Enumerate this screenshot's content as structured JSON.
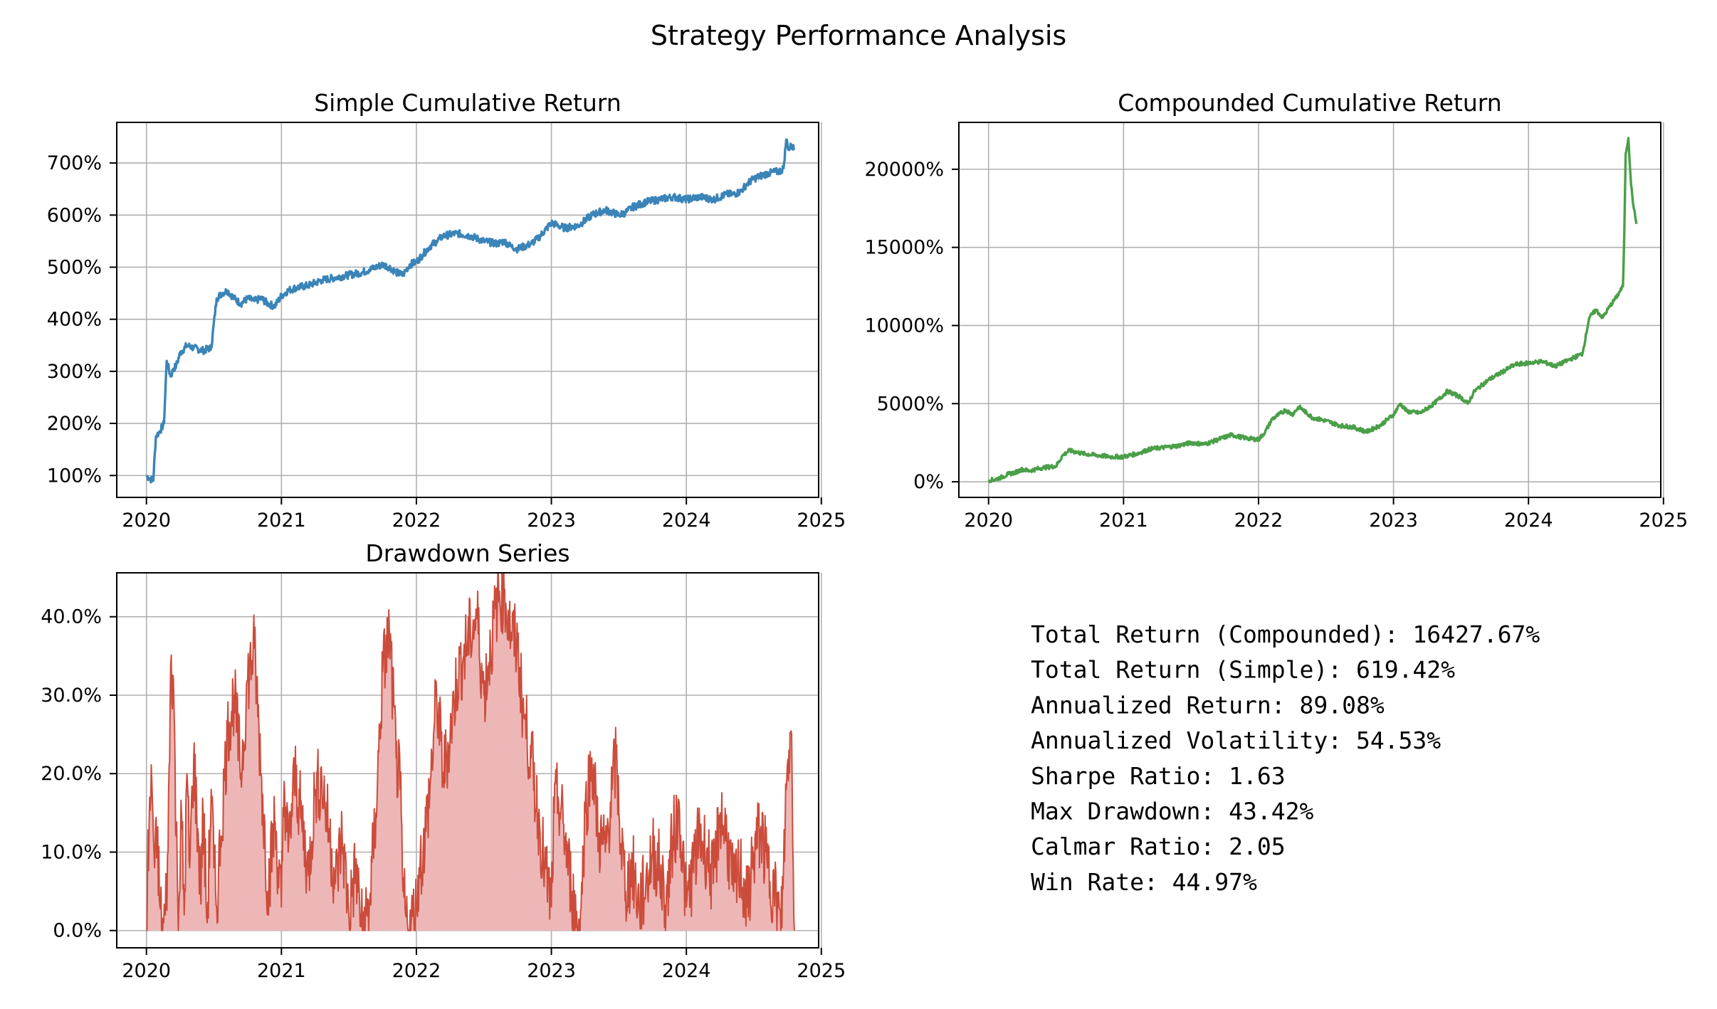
{
  "figure": {
    "title": "Strategy Performance Analysis"
  },
  "chart_data": [
    {
      "id": "simple",
      "type": "line",
      "title": "Simple Cumulative Return",
      "xlabel": "",
      "ylabel": "",
      "x_unit": "year",
      "xlim": [
        2019.78,
        2024.98
      ],
      "ylim": [
        58,
        778
      ],
      "xticks": [
        2020,
        2021,
        2022,
        2023,
        2024,
        2025
      ],
      "xtick_labels": [
        "2020",
        "2021",
        "2022",
        "2023",
        "2024",
        "2025"
      ],
      "yticks": [
        100,
        200,
        300,
        400,
        500,
        600,
        700
      ],
      "ytick_labels": [
        "100%",
        "200%",
        "300%",
        "400%",
        "500%",
        "600%",
        "700%"
      ],
      "grid": true,
      "color": "#3a84b8",
      "noise": 7,
      "series": [
        {
          "x": [
            2020.0,
            2020.02,
            2020.05,
            2020.07,
            2020.1,
            2020.13,
            2020.15,
            2020.18,
            2020.2,
            2020.22,
            2020.25,
            2020.3,
            2020.35,
            2020.42,
            2020.48,
            2020.52,
            2020.56,
            2020.6,
            2020.65,
            2020.7,
            2020.75,
            2020.8,
            2020.85,
            2020.9,
            2020.95,
            2021.0,
            2021.05,
            2021.1,
            2021.2,
            2021.3,
            2021.4,
            2021.5,
            2021.6,
            2021.65,
            2021.7,
            2021.75,
            2021.8,
            2021.85,
            2021.9,
            2021.95,
            2022.0,
            2022.05,
            2022.1,
            2022.15,
            2022.2,
            2022.3,
            2022.4,
            2022.5,
            2022.6,
            2022.65,
            2022.7,
            2022.75,
            2022.8,
            2022.85,
            2022.9,
            2023.0,
            2023.05,
            2023.1,
            2023.2,
            2023.3,
            2023.4,
            2023.5,
            2023.55,
            2023.6,
            2023.7,
            2023.8,
            2023.9,
            2024.0,
            2024.1,
            2024.2,
            2024.3,
            2024.35,
            2024.4,
            2024.45,
            2024.5,
            2024.6,
            2024.7,
            2024.72,
            2024.74,
            2024.76,
            2024.78,
            2024.8
          ],
          "y": [
            100,
            95,
            90,
            175,
            185,
            200,
            320,
            290,
            305,
            310,
            335,
            350,
            345,
            340,
            345,
            440,
            450,
            455,
            440,
            430,
            440,
            435,
            440,
            430,
            425,
            445,
            455,
            460,
            465,
            475,
            480,
            485,
            490,
            495,
            500,
            505,
            500,
            490,
            485,
            505,
            510,
            525,
            540,
            550,
            560,
            565,
            560,
            550,
            545,
            550,
            540,
            535,
            540,
            545,
            555,
            585,
            580,
            575,
            580,
            600,
            610,
            600,
            605,
            615,
            625,
            630,
            635,
            630,
            635,
            630,
            640,
            640,
            645,
            660,
            670,
            680,
            685,
            690,
            745,
            725,
            735,
            725
          ]
        }
      ]
    },
    {
      "id": "compounded",
      "type": "line",
      "title": "Compounded Cumulative Return",
      "xlabel": "",
      "ylabel": "",
      "x_unit": "year",
      "xlim": [
        2019.78,
        2024.98
      ],
      "ylim": [
        -1000,
        23000
      ],
      "xticks": [
        2020,
        2021,
        2022,
        2023,
        2024,
        2025
      ],
      "xtick_labels": [
        "2020",
        "2021",
        "2022",
        "2023",
        "2024",
        "2025"
      ],
      "yticks": [
        0,
        5000,
        10000,
        15000,
        20000
      ],
      "ytick_labels": [
        "0%",
        "5000%",
        "10000%",
        "15000%",
        "20000%"
      ],
      "grid": true,
      "color": "#4a9f48",
      "noise": 130,
      "series": [
        {
          "x": [
            2020.0,
            2020.05,
            2020.1,
            2020.15,
            2020.2,
            2020.25,
            2020.3,
            2020.4,
            2020.5,
            2020.55,
            2020.6,
            2020.65,
            2020.7,
            2020.8,
            2020.9,
            2021.0,
            2021.1,
            2021.2,
            2021.3,
            2021.4,
            2021.5,
            2021.6,
            2021.7,
            2021.8,
            2021.9,
            2022.0,
            2022.05,
            2022.1,
            2022.15,
            2022.2,
            2022.25,
            2022.3,
            2022.4,
            2022.5,
            2022.6,
            2022.7,
            2022.8,
            2022.9,
            2023.0,
            2023.05,
            2023.1,
            2023.2,
            2023.3,
            2023.4,
            2023.5,
            2023.55,
            2023.6,
            2023.7,
            2023.8,
            2023.9,
            2024.0,
            2024.1,
            2024.2,
            2024.3,
            2024.4,
            2024.45,
            2024.5,
            2024.55,
            2024.6,
            2024.65,
            2024.7,
            2024.71,
            2024.72,
            2024.74,
            2024.76,
            2024.78,
            2024.8
          ],
          "y": [
            100,
            150,
            300,
            500,
            600,
            800,
            700,
            900,
            1000,
            1700,
            2000,
            1900,
            1800,
            1700,
            1600,
            1600,
            1800,
            2100,
            2200,
            2300,
            2500,
            2400,
            2700,
            3000,
            2800,
            2700,
            3200,
            4000,
            4300,
            4600,
            4300,
            4800,
            4100,
            3900,
            3600,
            3500,
            3200,
            3600,
            4300,
            5000,
            4500,
            4400,
            5000,
            5800,
            5400,
            5000,
            5800,
            6500,
            7000,
            7500,
            7600,
            7700,
            7400,
            7800,
            8200,
            10500,
            11000,
            10500,
            11200,
            11800,
            12500,
            16000,
            21000,
            22000,
            19000,
            17500,
            16500
          ]
        }
      ]
    },
    {
      "id": "drawdown",
      "type": "area",
      "title": "Drawdown Series",
      "xlabel": "",
      "ylabel": "",
      "x_unit": "year",
      "xlim": [
        2019.78,
        2024.98
      ],
      "ylim": [
        -2.2,
        45.6
      ],
      "xticks": [
        2020,
        2021,
        2022,
        2023,
        2024,
        2025
      ],
      "xtick_labels": [
        "2020",
        "2021",
        "2022",
        "2023",
        "2024",
        "2025"
      ],
      "yticks": [
        0,
        10,
        20,
        30,
        40
      ],
      "ytick_labels": [
        "0.0%",
        "10.0%",
        "20.0%",
        "30.0%",
        "40.0%"
      ],
      "grid": true,
      "color": "#cc4c3b",
      "fill_color": "#eeb7b7",
      "noise": 5,
      "series": [
        {
          "x": [
            2020.0,
            2020.02,
            2020.04,
            2020.06,
            2020.08,
            2020.1,
            2020.12,
            2020.14,
            2020.16,
            2020.18,
            2020.2,
            2020.22,
            2020.24,
            2020.26,
            2020.28,
            2020.3,
            2020.32,
            2020.35,
            2020.38,
            2020.4,
            2020.42,
            2020.45,
            2020.48,
            2020.5,
            2020.52,
            2020.55,
            2020.6,
            2020.65,
            2020.7,
            2020.75,
            2020.8,
            2020.85,
            2020.9,
            2020.95,
            2021.0,
            2021.02,
            2021.05,
            2021.1,
            2021.15,
            2021.2,
            2021.25,
            2021.3,
            2021.35,
            2021.4,
            2021.45,
            2021.5,
            2021.55,
            2021.6,
            2021.65,
            2021.7,
            2021.75,
            2021.8,
            2021.85,
            2021.88,
            2021.9,
            2021.92,
            2021.95,
            2022.0,
            2022.02,
            2022.05,
            2022.1,
            2022.15,
            2022.2,
            2022.25,
            2022.3,
            2022.35,
            2022.4,
            2022.45,
            2022.5,
            2022.55,
            2022.6,
            2022.65,
            2022.7,
            2022.75,
            2022.78,
            2022.8,
            2022.85,
            2022.9,
            2022.95,
            2023.0,
            2023.02,
            2023.05,
            2023.1,
            2023.15,
            2023.2,
            2023.22,
            2023.25,
            2023.3,
            2023.35,
            2023.4,
            2023.45,
            2023.48,
            2023.5,
            2023.55,
            2023.6,
            2023.65,
            2023.7,
            2023.75,
            2023.8,
            2023.85,
            2023.9,
            2023.95,
            2024.0,
            2024.05,
            2024.1,
            2024.15,
            2024.2,
            2024.25,
            2024.3,
            2024.35,
            2024.4,
            2024.45,
            2024.5,
            2024.55,
            2024.6,
            2024.65,
            2024.68,
            2024.7,
            2024.72,
            2024.74,
            2024.76,
            2024.78,
            2024.8
          ],
          "y": [
            0,
            14,
            19,
            8,
            12,
            3,
            0,
            2,
            10,
            34,
            32,
            12,
            3,
            15,
            2,
            20,
            8,
            22,
            13,
            5,
            15,
            1,
            18,
            8,
            3,
            12,
            25,
            30,
            20,
            32,
            36,
            20,
            5,
            14,
            3,
            19,
            10,
            20,
            14,
            7,
            18,
            19,
            13,
            6,
            12,
            2,
            8,
            0,
            3,
            15,
            33,
            38,
            22,
            18,
            5,
            2,
            0,
            3,
            8,
            10,
            18,
            30,
            20,
            25,
            32,
            35,
            38,
            40,
            30,
            36,
            42,
            43,
            38,
            36,
            30,
            27,
            22,
            15,
            8,
            3,
            15,
            17,
            12,
            5,
            0,
            3,
            15,
            22,
            12,
            10,
            18,
            22,
            15,
            5,
            8,
            3,
            6,
            10,
            8,
            3,
            12,
            15,
            3,
            8,
            12,
            10,
            6,
            15,
            12,
            5,
            8,
            3,
            10,
            13,
            8,
            5,
            3,
            0,
            8,
            18,
            23,
            25,
            0
          ]
        }
      ]
    }
  ],
  "stats": [
    {
      "label": "Total Return (Compounded)",
      "value": "16427.67%"
    },
    {
      "label": "Total Return (Simple)",
      "value": "619.42%"
    },
    {
      "label": "Annualized Return",
      "value": "89.08%"
    },
    {
      "label": "Annualized Volatility",
      "value": "54.53%"
    },
    {
      "label": "Sharpe Ratio",
      "value": "1.63"
    },
    {
      "label": "Max Drawdown",
      "value": "43.42%"
    },
    {
      "label": "Calmar Ratio",
      "value": "2.05"
    },
    {
      "label": "Win Rate",
      "value": "44.97%"
    }
  ]
}
